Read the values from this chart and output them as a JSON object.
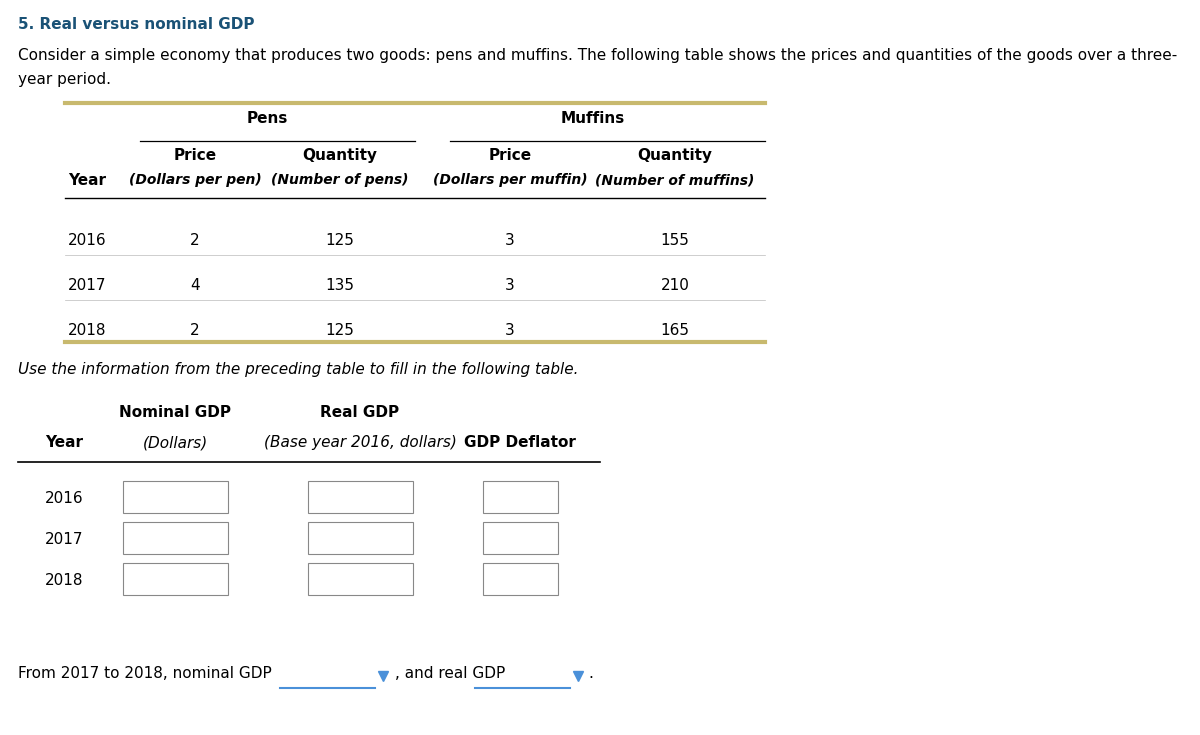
{
  "title": "5. Real versus nominal GDP",
  "title_color": "#1a5276",
  "intro_line1": "Consider a simple economy that produces two goods: pens and muffins. The following table shows the prices and quantities of the goods over a three-",
  "intro_line2": "year period.",
  "table1": {
    "border_color": "#c8b96e",
    "line_color": "#000000",
    "rows": [
      {
        "year": "2016",
        "pen_price": "2",
        "pen_qty": "125",
        "muffin_price": "3",
        "muffin_qty": "155"
      },
      {
        "year": "2017",
        "pen_price": "4",
        "pen_qty": "135",
        "muffin_price": "3",
        "muffin_qty": "210"
      },
      {
        "year": "2018",
        "pen_price": "2",
        "pen_qty": "125",
        "muffin_price": "3",
        "muffin_qty": "165"
      }
    ]
  },
  "fill_text": "Use the information from the preceding table to fill in the following table.",
  "table2": {
    "col1_header": "Nominal GDP",
    "col1_subheader": "(Dollars)",
    "col2_header": "Real GDP",
    "col2_subheader": "(Base year 2016, dollars)",
    "col3_header": "GDP Deflator",
    "years": [
      "2016",
      "2017",
      "2018"
    ]
  },
  "bottom_text": "From 2017 to 2018, nominal GDP",
  "bottom_text2": ", and real GDP",
  "bottom_text3": ".",
  "dropdown_color": "#4a90d9",
  "bg_color": "#ffffff",
  "text_color": "#000000"
}
